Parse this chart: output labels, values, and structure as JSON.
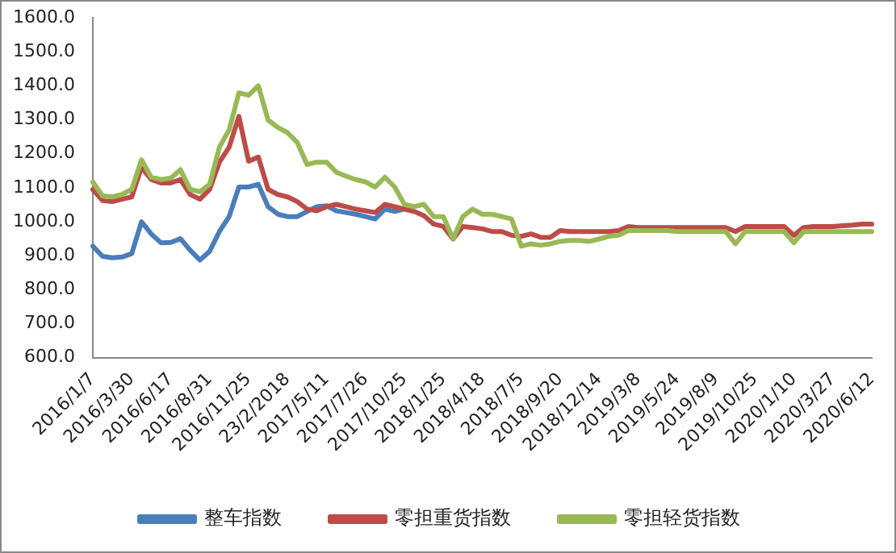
{
  "chart_data": {
    "type": "line",
    "categories": [
      "2016/1/7",
      null,
      null,
      null,
      "2016/3/30",
      null,
      null,
      null,
      "2016/6/17",
      null,
      null,
      null,
      "2016/8/31",
      null,
      null,
      null,
      "2016/11/25",
      null,
      null,
      null,
      "23/2/2018",
      null,
      null,
      null,
      "2017/5/11",
      null,
      null,
      null,
      "2017/7/26",
      null,
      null,
      null,
      "2017/10/25",
      null,
      null,
      null,
      "2018/1/25",
      null,
      null,
      null,
      "2018/4/18",
      null,
      null,
      null,
      "2018/7/5",
      null,
      null,
      null,
      "2018/9/20",
      null,
      null,
      null,
      "2018/12/14",
      null,
      null,
      null,
      "2019/3/8",
      null,
      null,
      null,
      "2019/5/24",
      null,
      null,
      null,
      "2019/8/9",
      null,
      null,
      null,
      "2019/10/25",
      null,
      null,
      null,
      "2020/1/10",
      null,
      null,
      null,
      "2020/3/27",
      null,
      null,
      null,
      "2020/6/12"
    ],
    "series": [
      {
        "name": "整车指数",
        "color": "#4a7ebb",
        "values": [
          928,
          898,
          894,
          896,
          906,
          1000,
          964,
          938,
          939,
          950,
          916,
          887,
          913,
          971,
          1015,
          1102,
          1102,
          1110,
          1044,
          1022,
          1015,
          1015,
          1030,
          1044,
          1047,
          1032,
          1027,
          1022,
          1015,
          1008,
          1037,
          1030,
          1037,
          null,
          null,
          null,
          null,
          null,
          null,
          null,
          null,
          null,
          null,
          null,
          null,
          null,
          null,
          null,
          null,
          null,
          null,
          null,
          null,
          null,
          null,
          null,
          null,
          null,
          null,
          null,
          null,
          null,
          null,
          null,
          null,
          null,
          null,
          null,
          null,
          null,
          null,
          null,
          null,
          null,
          null,
          null,
          null,
          null,
          null,
          null,
          null
        ]
      },
      {
        "name": "零担重货指数",
        "color": "#be4b48",
        "values": [
          1095,
          1062,
          1059,
          1066,
          1073,
          1160,
          1124,
          1114,
          1114,
          1124,
          1080,
          1066,
          1095,
          1175,
          1219,
          1310,
          1178,
          1190,
          1095,
          1080,
          1073,
          1059,
          1037,
          1032,
          1044,
          1051,
          1044,
          1037,
          1032,
          1027,
          1051,
          1044,
          1037,
          1030,
          1018,
          993,
          986,
          949,
          986,
          983,
          979,
          971,
          971,
          960,
          957,
          964,
          954,
          954,
          974,
          971,
          971,
          971,
          971,
          971,
          974,
          986,
          983,
          983,
          983,
          983,
          983,
          983,
          983,
          983,
          983,
          983,
          971,
          986,
          986,
          986,
          986,
          986,
          960,
          983,
          986,
          986,
          986,
          988,
          990,
          993,
          993
        ]
      },
      {
        "name": "零担轻货指数",
        "color": "#98b954",
        "values": [
          1117,
          1076,
          1073,
          1080,
          1095,
          1182,
          1131,
          1124,
          1128,
          1153,
          1095,
          1088,
          1110,
          1219,
          1270,
          1379,
          1372,
          1400,
          1299,
          1277,
          1262,
          1233,
          1168,
          1175,
          1175,
          1146,
          1134,
          1124,
          1117,
          1102,
          1131,
          1102,
          1051,
          1044,
          1051,
          1015,
          1015,
          949,
          1015,
          1037,
          1022,
          1022,
          1015,
          1008,
          928,
          935,
          931,
          935,
          942,
          945,
          945,
          942,
          949,
          957,
          960,
          974,
          974,
          974,
          974,
          974,
          971,
          971,
          971,
          971,
          971,
          971,
          935,
          971,
          971,
          971,
          971,
          971,
          938,
          971,
          971,
          971,
          971,
          971,
          971,
          971,
          971
        ]
      }
    ],
    "ylim": [
      600,
      1600
    ],
    "yticks": [
      {
        "value": 600,
        "label": "600.0"
      },
      {
        "value": 700,
        "label": "700.0"
      },
      {
        "value": 800,
        "label": "800.0"
      },
      {
        "value": 900,
        "label": "900.0"
      },
      {
        "value": 1000,
        "label": "1000.0"
      },
      {
        "value": 1100,
        "label": "1100.0"
      },
      {
        "value": 1200,
        "label": "1200.0"
      },
      {
        "value": 1300,
        "label": "1300.0"
      },
      {
        "value": 1400,
        "label": "1400.0"
      },
      {
        "value": 1500,
        "label": "1500.0"
      },
      {
        "value": 1600,
        "label": "1600.0"
      }
    ],
    "grid": false,
    "legend": "bottom",
    "marker": "none",
    "line_style": "solid"
  }
}
